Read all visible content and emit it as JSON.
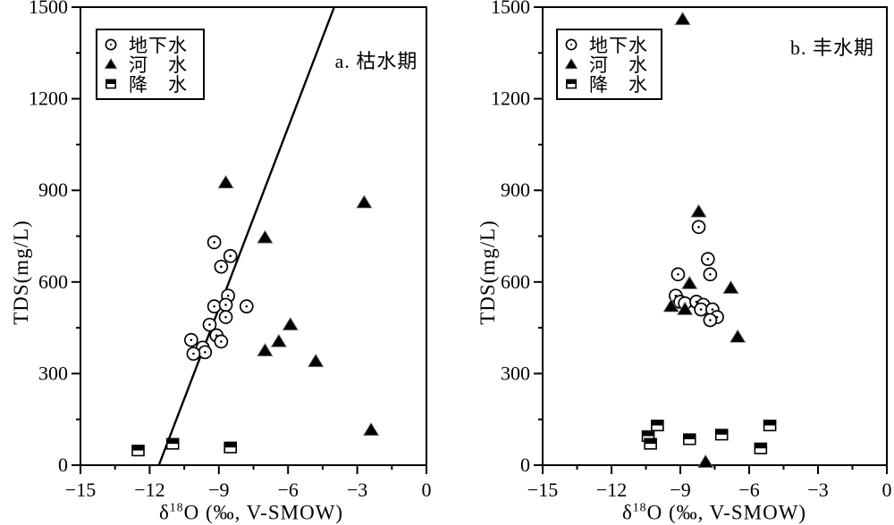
{
  "figure": {
    "background": "#ffffff",
    "ink": "#000000"
  },
  "axis": {
    "xlabel_delta": "δ",
    "xlabel_sup": "18",
    "xlabel_rest": "O (‰, V-SMOW)",
    "ylabel": "TDS(mg/L)"
  },
  "chart_data": {
    "type": "scatter",
    "xlabel": "δ¹⁸O (‰, V-SMOW)",
    "ylabel": "TDS(mg/L)",
    "xlim": [
      -15,
      0
    ],
    "ylim": [
      0,
      1500
    ],
    "grid": false,
    "xticks": {
      "major": [
        -15,
        -12,
        -9,
        -6,
        -3,
        0
      ],
      "labels": [
        "−15",
        "−12",
        "−9",
        "−6",
        "−3",
        "0"
      ],
      "minor_step": 1.5
    },
    "yticks": {
      "major": [
        0,
        300,
        600,
        900,
        1200,
        1500
      ],
      "labels": [
        "0",
        "300",
        "600",
        "900",
        "1200",
        "1500"
      ],
      "minor_step": 150
    },
    "legend": {
      "position": "upper-left-inside",
      "entries": [
        {
          "marker": "circle",
          "label": "地下水"
        },
        {
          "marker": "triangle",
          "label": "河　水"
        },
        {
          "marker": "square",
          "label": "降　水"
        }
      ]
    },
    "panels": [
      {
        "title": "a. 枯水期",
        "series": [
          {
            "name": "地下水",
            "marker": "circle",
            "points": [
              [
                -9.2,
                730
              ],
              [
                -8.5,
                685
              ],
              [
                -8.9,
                650
              ],
              [
                -8.6,
                555
              ],
              [
                -9.2,
                520
              ],
              [
                -8.7,
                525
              ],
              [
                -7.8,
                520
              ],
              [
                -8.7,
                485
              ],
              [
                -9.4,
                460
              ],
              [
                -9.1,
                425
              ],
              [
                -8.9,
                405
              ],
              [
                -10.2,
                410
              ],
              [
                -9.7,
                385
              ],
              [
                -9.6,
                370
              ],
              [
                -10.1,
                365
              ]
            ]
          },
          {
            "name": "河水",
            "marker": "triangle",
            "points": [
              [
                -8.7,
                925
              ],
              [
                -2.7,
                860
              ],
              [
                -7.0,
                745
              ],
              [
                -5.9,
                460
              ],
              [
                -6.4,
                405
              ],
              [
                -7.0,
                375
              ],
              [
                -4.8,
                340
              ],
              [
                -2.4,
                115
              ]
            ]
          },
          {
            "name": "降水",
            "marker": "square",
            "points": [
              [
                -12.5,
                48
              ],
              [
                -11.0,
                70
              ],
              [
                -8.5,
                58
              ]
            ]
          }
        ],
        "trendline": {
          "x1": -11.6,
          "y1": 0,
          "x2": -4.0,
          "y2": 1500
        }
      },
      {
        "title": "b. 丰水期",
        "series": [
          {
            "name": "地下水",
            "marker": "circle",
            "points": [
              [
                -8.2,
                780
              ],
              [
                -7.8,
                675
              ],
              [
                -9.1,
                625
              ],
              [
                -7.7,
                625
              ],
              [
                -9.2,
                555
              ],
              [
                -9.0,
                535
              ],
              [
                -8.8,
                530
              ],
              [
                -8.3,
                535
              ],
              [
                -8.0,
                525
              ],
              [
                -8.1,
                510
              ],
              [
                -7.6,
                510
              ],
              [
                -7.4,
                485
              ],
              [
                -7.7,
                475
              ]
            ]
          },
          {
            "name": "河水",
            "marker": "triangle",
            "points": [
              [
                -8.9,
                1460
              ],
              [
                -8.2,
                830
              ],
              [
                -8.6,
                595
              ],
              [
                -6.8,
                580
              ],
              [
                -9.4,
                520
              ],
              [
                -8.8,
                510
              ],
              [
                -6.5,
                420
              ],
              [
                -7.9,
                10
              ]
            ]
          },
          {
            "name": "降水",
            "marker": "square",
            "points": [
              [
                -10.0,
                130
              ],
              [
                -10.4,
                95
              ],
              [
                -10.3,
                70
              ],
              [
                -8.6,
                85
              ],
              [
                -7.2,
                100
              ],
              [
                -5.1,
                130
              ],
              [
                -5.5,
                55
              ]
            ]
          }
        ],
        "trendline": null
      }
    ]
  }
}
